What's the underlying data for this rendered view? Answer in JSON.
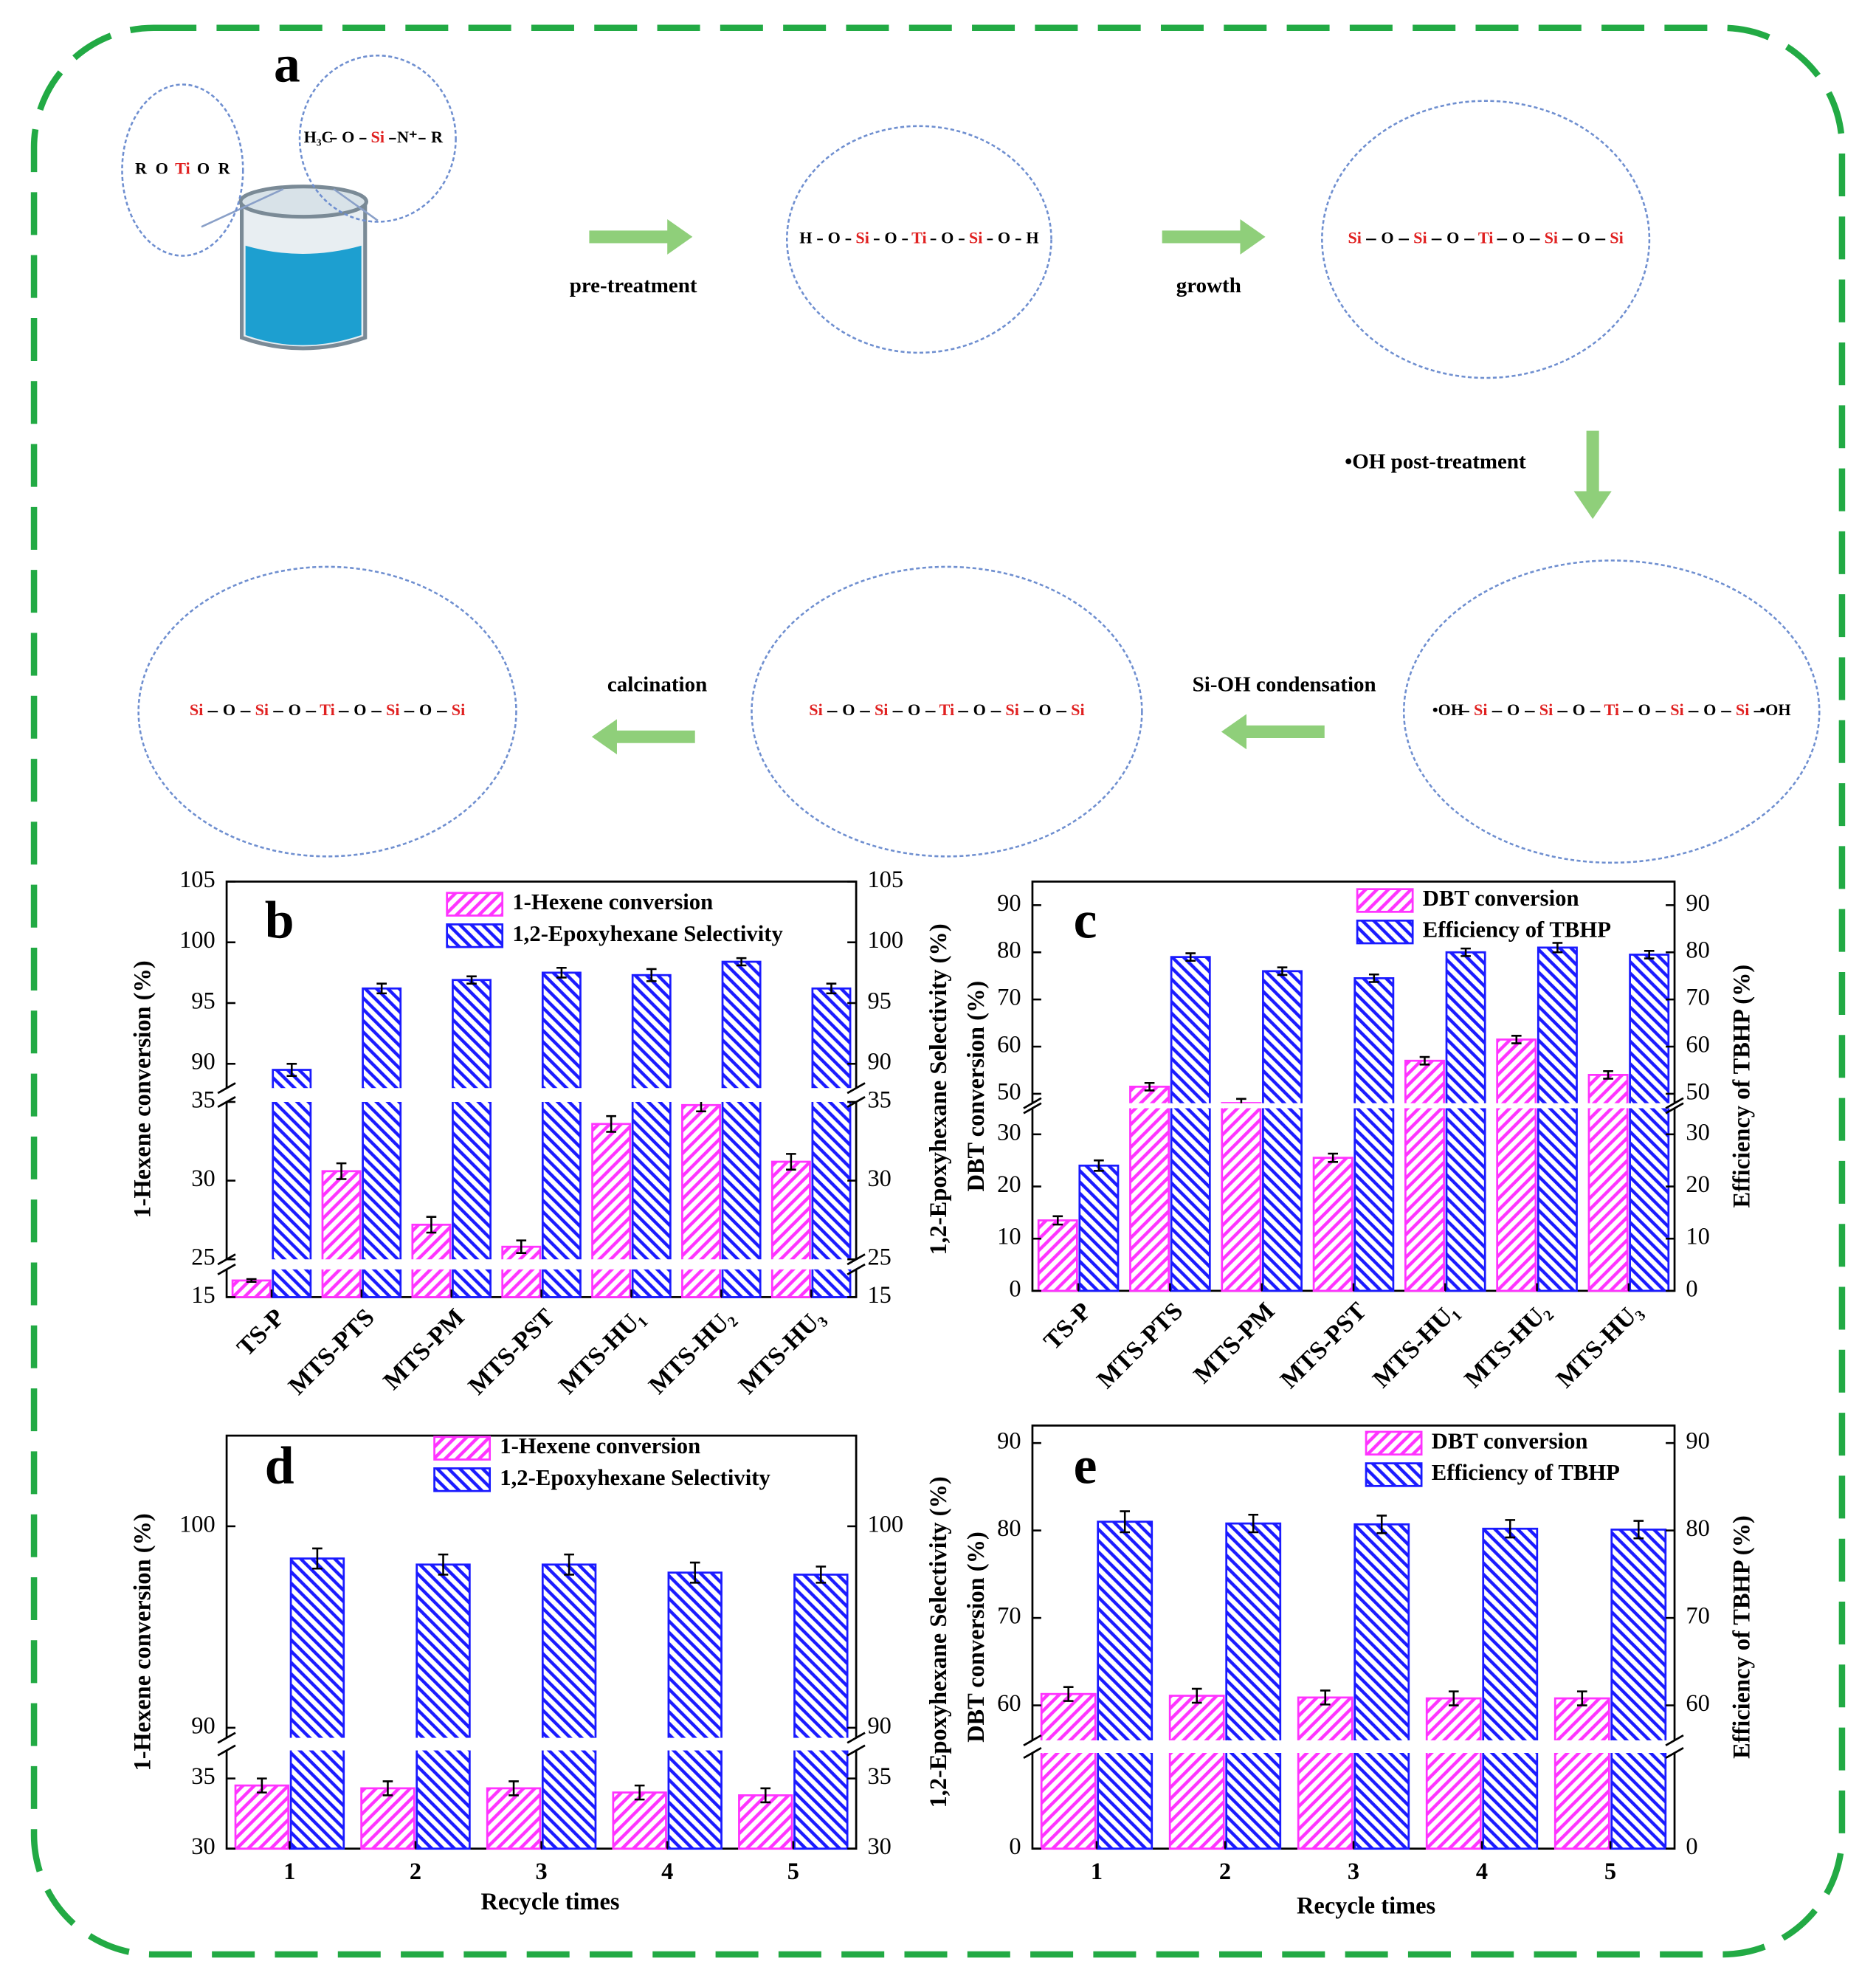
{
  "scheme": {
    "label": "a",
    "steps": [
      "pre-treatment",
      "growth",
      "•OH post-treatment",
      "Si-OH  condensation",
      "calcination"
    ],
    "structures": [
      {
        "atoms": [
          "R",
          "O",
          "Ti",
          "O",
          "R"
        ]
      },
      {
        "atoms": [
          "H₃C",
          "O",
          "Si",
          "N⁺",
          "R"
        ]
      },
      {
        "atoms": [
          "H",
          "O",
          "Si",
          "O",
          "Ti",
          "O",
          "Si",
          "O",
          "H"
        ]
      },
      {
        "atoms": [
          "Si",
          "O",
          "Si",
          "O",
          "Ti",
          "O",
          "Si",
          "O",
          "Si"
        ]
      },
      {
        "atoms": [
          "•OH",
          "Si",
          "O",
          "Si",
          "O",
          "Ti",
          "O",
          "Si",
          "O",
          "Si",
          "•OH"
        ]
      },
      {
        "atoms": [
          "Si",
          "O",
          "Si",
          "O",
          "Ti",
          "O",
          "Si",
          "O",
          "Si"
        ]
      },
      {
        "atoms": [
          "Si",
          "O",
          "Si",
          "O",
          "Ti",
          "O",
          "Si",
          "O",
          "Si"
        ]
      }
    ]
  },
  "chart_data": [
    {
      "type": "bar",
      "label": "b",
      "categories": [
        "TS-P",
        "MTS-PTS",
        "MTS-PM",
        "MTS-PST",
        "MTS-HU₁",
        "MTS-HU₂",
        "MTS-HU₃"
      ],
      "y_title": "1-Hexene conversion (%)",
      "y2_title": "1,2-Epoxyhexane Selectivity (%)",
      "y_segments": [
        {
          "ylim": [
            15,
            25
          ],
          "yticks": [
            15
          ]
        },
        {
          "ylim": [
            25,
            35
          ],
          "yticks": [
            25,
            30,
            35
          ]
        },
        {
          "ylim": [
            88,
            105
          ],
          "yticks": [
            90,
            95,
            100,
            105
          ]
        }
      ],
      "y2_segments": [
        {
          "ylim": [
            15,
            25
          ],
          "yticks": [
            15
          ]
        },
        {
          "ylim": [
            25,
            35
          ],
          "yticks": [
            25,
            30,
            35
          ]
        },
        {
          "ylim": [
            88,
            105
          ],
          "yticks": [
            90,
            95,
            100,
            105
          ]
        }
      ],
      "series": [
        {
          "name": "1-Hexene conversion",
          "color": "#ff33ff",
          "values": [
            21,
            30.6,
            27.2,
            25.8,
            33.6,
            34.8,
            31.2
          ],
          "errors": [
            0.5,
            0.5,
            0.5,
            0.4,
            0.5,
            0.4,
            0.5
          ]
        },
        {
          "name": "1,2-Epoxyhexane Selectivity",
          "color": "#1a1aff",
          "axis": "y2",
          "values": [
            89.5,
            96.2,
            96.9,
            97.5,
            97.3,
            98.4,
            96.2
          ],
          "errors": [
            0.5,
            0.4,
            0.3,
            0.4,
            0.5,
            0.3,
            0.4
          ]
        }
      ]
    },
    {
      "type": "bar",
      "label": "c",
      "categories": [
        "TS-P",
        "MTS-PTS",
        "MTS-PM",
        "MTS-PST",
        "MTS-HU₁",
        "MTS-HU₂",
        "MTS-HU₃"
      ],
      "y_title": "DBT conversion (%)",
      "y2_title": "Efficiency of TBHP (%)",
      "y_segments": [
        {
          "ylim": [
            0,
            35
          ],
          "yticks": [
            0,
            10,
            20,
            30
          ]
        },
        {
          "ylim": [
            48,
            95
          ],
          "yticks": [
            50,
            60,
            70,
            80,
            90
          ]
        }
      ],
      "y2_segments": [
        {
          "ylim": [
            0,
            35
          ],
          "yticks": [
            0,
            10,
            20,
            30
          ]
        },
        {
          "ylim": [
            48,
            95
          ],
          "yticks": [
            50,
            60,
            70,
            80,
            90
          ]
        }
      ],
      "series": [
        {
          "name": "DBT conversion",
          "color": "#ff33ff",
          "values": [
            13.5,
            51.5,
            36,
            25.5,
            57,
            61.5,
            54
          ],
          "errors": [
            0.8,
            0.8,
            0.8,
            0.8,
            0.8,
            0.8,
            0.8
          ]
        },
        {
          "name": "Efficiency of TBHP",
          "color": "#1a1aff",
          "axis": "y2",
          "values": [
            24,
            79,
            76,
            74.5,
            80,
            81,
            79.5
          ],
          "errors": [
            1,
            0.8,
            0.8,
            0.8,
            0.8,
            1,
            0.8
          ]
        }
      ]
    },
    {
      "type": "bar",
      "label": "d",
      "categories": [
        "1",
        "2",
        "3",
        "4",
        "5"
      ],
      "x_title": "Recycle times",
      "y_title": "1-Hexene conversion (%)",
      "y2_title": "1,2-Epoxyhexane Selectivity (%)",
      "y_segments": [
        {
          "ylim": [
            30,
            37
          ],
          "yticks": [
            30,
            35
          ]
        },
        {
          "ylim": [
            89.5,
            104.5
          ],
          "yticks": [
            90,
            100
          ]
        }
      ],
      "y2_segments": [
        {
          "ylim": [
            30,
            37
          ],
          "yticks": [
            30,
            35
          ]
        },
        {
          "ylim": [
            89.5,
            104.5
          ],
          "yticks": [
            90,
            100
          ]
        }
      ],
      "series": [
        {
          "name": "1-Hexene conversion",
          "color": "#ff33ff",
          "values": [
            34.5,
            34.3,
            34.3,
            34.0,
            33.8
          ],
          "errors": [
            0.5,
            0.5,
            0.5,
            0.5,
            0.5
          ]
        },
        {
          "name": "1,2-Epoxyhexane Selectivity",
          "color": "#1a1aff",
          "axis": "y2",
          "values": [
            98.4,
            98.1,
            98.1,
            97.7,
            97.6
          ],
          "errors": [
            0.5,
            0.5,
            0.5,
            0.5,
            0.4
          ]
        }
      ]
    },
    {
      "type": "bar",
      "label": "e",
      "categories": [
        "1",
        "2",
        "3",
        "4",
        "5"
      ],
      "x_title": "Recycle times",
      "y_title": "DBT conversion (%)",
      "y2_title": "Efficiency of TBHP (%)",
      "y_segments": [
        {
          "ylim": [
            0,
            55
          ],
          "yticks": [
            0
          ]
        },
        {
          "ylim": [
            56,
            92
          ],
          "yticks": [
            60,
            70,
            80,
            90
          ]
        }
      ],
      "y2_segments": [
        {
          "ylim": [
            0,
            55
          ],
          "yticks": [
            0
          ]
        },
        {
          "ylim": [
            56,
            92
          ],
          "yticks": [
            60,
            70,
            80,
            90
          ]
        }
      ],
      "series": [
        {
          "name": "DBT conversion",
          "color": "#ff33ff",
          "values": [
            61.3,
            61.1,
            60.9,
            60.8,
            60.8
          ],
          "errors": [
            0.8,
            0.8,
            0.8,
            0.8,
            0.8
          ]
        },
        {
          "name": "Efficiency of TBHP",
          "color": "#1a1aff",
          "axis": "y2",
          "values": [
            81,
            80.8,
            80.7,
            80.2,
            80.1
          ],
          "errors": [
            1.2,
            1,
            1,
            1,
            1
          ]
        }
      ]
    }
  ]
}
